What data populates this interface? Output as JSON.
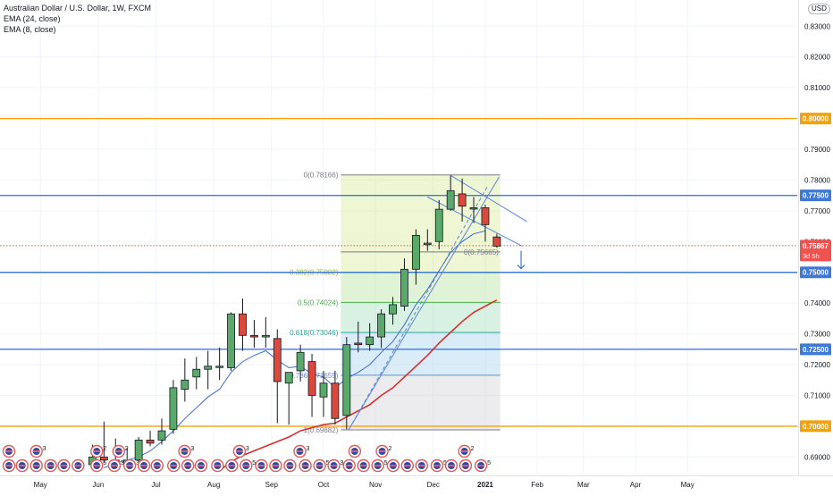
{
  "header": {
    "title": "Australian Dollar / U.S. Dollar, 1W, FXCM",
    "indicators": [
      "EMA (24, close)",
      "EMA (8, close)"
    ],
    "currency": "USD"
  },
  "colors": {
    "up": "#5aa86a",
    "down": "#d94a3c",
    "ema24": "#d32f2f",
    "ema8": "#3f6bd1",
    "orange_level": "#f2a20f",
    "blue_level": "#3f79d6",
    "current_price": "#ef5350"
  },
  "chart_data": {
    "type": "candlestick",
    "title": "Australian Dollar / U.S. Dollar, 1W, FXCM",
    "y_range": [
      0.684,
      0.8385
    ],
    "x_domain": [
      0,
      69
    ],
    "y_ticks": [
      "0.83000",
      "0.82000",
      "0.81000",
      "0.80000",
      "0.79000",
      "0.78000",
      "0.77000",
      "0.76000",
      "0.75000",
      "0.74000",
      "0.73000",
      "0.72000",
      "0.71000",
      "0.70000",
      "0.69000"
    ],
    "y_tick_values": [
      0.83,
      0.82,
      0.81,
      0.8,
      0.79,
      0.78,
      0.77,
      0.76,
      0.75,
      0.74,
      0.73,
      0.72,
      0.71,
      0.7,
      0.69
    ],
    "x_ticks": [
      {
        "label": "May",
        "x": 3.5
      },
      {
        "label": "Jun",
        "x": 8.5
      },
      {
        "label": "Jul",
        "x": 13.5
      },
      {
        "label": "Aug",
        "x": 18.5
      },
      {
        "label": "Sep",
        "x": 23.5
      },
      {
        "label": "Oct",
        "x": 28.0
      },
      {
        "label": "Nov",
        "x": 32.5
      },
      {
        "label": "Dec",
        "x": 37.5
      },
      {
        "label": "2021",
        "x": 42.0
      },
      {
        "label": "Feb",
        "x": 46.5
      },
      {
        "label": "Mar",
        "x": 50.5
      },
      {
        "label": "Apr",
        "x": 55.0
      },
      {
        "label": "May",
        "x": 59.5
      }
    ],
    "candles": [
      {
        "x": 8,
        "o": 0.6875,
        "h": 0.694,
        "l": 0.686,
        "c": 0.69
      },
      {
        "x": 9,
        "o": 0.69,
        "h": 0.7015,
        "l": 0.688,
        "c": 0.689
      },
      {
        "x": 10,
        "o": 0.689,
        "h": 0.696,
        "l": 0.687,
        "c": 0.688
      },
      {
        "x": 11,
        "o": 0.688,
        "h": 0.693,
        "l": 0.686,
        "c": 0.689
      },
      {
        "x": 12,
        "o": 0.689,
        "h": 0.6965,
        "l": 0.687,
        "c": 0.6955
      },
      {
        "x": 13,
        "o": 0.6955,
        "h": 0.6985,
        "l": 0.6935,
        "c": 0.6945
      },
      {
        "x": 14,
        "o": 0.6955,
        "h": 0.7025,
        "l": 0.694,
        "c": 0.6985
      },
      {
        "x": 15,
        "o": 0.699,
        "h": 0.715,
        "l": 0.6975,
        "c": 0.7125
      },
      {
        "x": 16,
        "o": 0.712,
        "h": 0.722,
        "l": 0.708,
        "c": 0.715
      },
      {
        "x": 17,
        "o": 0.716,
        "h": 0.7225,
        "l": 0.712,
        "c": 0.7185
      },
      {
        "x": 18,
        "o": 0.7185,
        "h": 0.7245,
        "l": 0.712,
        "c": 0.7195
      },
      {
        "x": 19,
        "o": 0.7195,
        "h": 0.7255,
        "l": 0.715,
        "c": 0.7195
      },
      {
        "x": 20,
        "o": 0.719,
        "h": 0.737,
        "l": 0.718,
        "c": 0.7365
      },
      {
        "x": 21,
        "o": 0.7365,
        "h": 0.7415,
        "l": 0.7245,
        "c": 0.7295
      },
      {
        "x": 22,
        "o": 0.7295,
        "h": 0.7345,
        "l": 0.7255,
        "c": 0.729
      },
      {
        "x": 23,
        "o": 0.729,
        "h": 0.7355,
        "l": 0.7255,
        "c": 0.7295
      },
      {
        "x": 24,
        "o": 0.7285,
        "h": 0.7315,
        "l": 0.701,
        "c": 0.7145
      },
      {
        "x": 25,
        "o": 0.714,
        "h": 0.717,
        "l": 0.7005,
        "c": 0.7175
      },
      {
        "x": 26,
        "o": 0.718,
        "h": 0.7265,
        "l": 0.7145,
        "c": 0.724
      },
      {
        "x": 27,
        "o": 0.721,
        "h": 0.7235,
        "l": 0.703,
        "c": 0.71
      },
      {
        "x": 28,
        "o": 0.7095,
        "h": 0.718,
        "l": 0.703,
        "c": 0.714
      },
      {
        "x": 29,
        "o": 0.714,
        "h": 0.718,
        "l": 0.7005,
        "c": 0.7025
      },
      {
        "x": 30,
        "o": 0.7035,
        "h": 0.729,
        "l": 0.699,
        "c": 0.7265
      },
      {
        "x": 31,
        "o": 0.727,
        "h": 0.734,
        "l": 0.724,
        "c": 0.7265
      },
      {
        "x": 32,
        "o": 0.7265,
        "h": 0.7335,
        "l": 0.7245,
        "c": 0.729
      },
      {
        "x": 33,
        "o": 0.729,
        "h": 0.738,
        "l": 0.7255,
        "c": 0.7365
      },
      {
        "x": 34,
        "o": 0.7365,
        "h": 0.742,
        "l": 0.733,
        "c": 0.7395
      },
      {
        "x": 35,
        "o": 0.739,
        "h": 0.7545,
        "l": 0.7375,
        "c": 0.751
      },
      {
        "x": 36,
        "o": 0.751,
        "h": 0.764,
        "l": 0.746,
        "c": 0.762
      },
      {
        "x": 37,
        "o": 0.759,
        "h": 0.764,
        "l": 0.757,
        "c": 0.7595
      },
      {
        "x": 38,
        "o": 0.76,
        "h": 0.7735,
        "l": 0.7575,
        "c": 0.7705
      },
      {
        "x": 39,
        "o": 0.7705,
        "h": 0.7815,
        "l": 0.77,
        "c": 0.7765
      },
      {
        "x": 40,
        "o": 0.7755,
        "h": 0.7805,
        "l": 0.7665,
        "c": 0.7715
      },
      {
        "x": 41,
        "o": 0.771,
        "h": 0.7745,
        "l": 0.766,
        "c": 0.771
      },
      {
        "x": 42,
        "o": 0.771,
        "h": 0.772,
        "l": 0.76,
        "c": 0.7655
      },
      {
        "x": 43,
        "o": 0.7615,
        "h": 0.7625,
        "l": 0.758,
        "c": 0.7585
      }
    ],
    "ema8": [
      [
        9,
        0.6865
      ],
      [
        10,
        0.688
      ],
      [
        11,
        0.689
      ],
      [
        12,
        0.69
      ],
      [
        13,
        0.692
      ],
      [
        14,
        0.695
      ],
      [
        15,
        0.6985
      ],
      [
        16,
        0.7025
      ],
      [
        17,
        0.706
      ],
      [
        18,
        0.7095
      ],
      [
        19,
        0.712
      ],
      [
        20,
        0.7175
      ],
      [
        21,
        0.721
      ],
      [
        22,
        0.723
      ],
      [
        23,
        0.7245
      ],
      [
        24,
        0.7215
      ],
      [
        25,
        0.719
      ],
      [
        26,
        0.7195
      ],
      [
        27,
        0.717
      ],
      [
        28,
        0.716
      ],
      [
        29,
        0.7125
      ],
      [
        30,
        0.7155
      ],
      [
        31,
        0.7175
      ],
      [
        32,
        0.72
      ],
      [
        33,
        0.724
      ],
      [
        34,
        0.7275
      ],
      [
        35,
        0.733
      ],
      [
        36,
        0.7395
      ],
      [
        37,
        0.7445
      ],
      [
        38,
        0.7505
      ],
      [
        39,
        0.7565
      ],
      [
        40,
        0.76
      ],
      [
        41,
        0.7625
      ],
      [
        42,
        0.7635
      ]
    ],
    "ema24": [
      [
        19,
        0.6855
      ],
      [
        20,
        0.6885
      ],
      [
        21,
        0.6905
      ],
      [
        22,
        0.692
      ],
      [
        23,
        0.6935
      ],
      [
        24,
        0.695
      ],
      [
        25,
        0.6965
      ],
      [
        26,
        0.6985
      ],
      [
        27,
        0.6995
      ],
      [
        28,
        0.7005
      ],
      [
        29,
        0.701
      ],
      [
        30,
        0.703
      ],
      [
        31,
        0.705
      ],
      [
        32,
        0.707
      ],
      [
        33,
        0.71
      ],
      [
        34,
        0.7125
      ],
      [
        35,
        0.716
      ],
      [
        36,
        0.7195
      ],
      [
        37,
        0.723
      ],
      [
        38,
        0.727
      ],
      [
        39,
        0.7305
      ],
      [
        40,
        0.734
      ],
      [
        41,
        0.737
      ],
      [
        42,
        0.739
      ],
      [
        43,
        0.741
      ]
    ],
    "horizontal_levels": [
      {
        "value": 0.8,
        "color": "orange",
        "label": "0.80000"
      },
      {
        "value": 0.775,
        "color": "blue",
        "label": "0.77500"
      },
      {
        "value": 0.75,
        "color": "blue",
        "label": "0.75000"
      },
      {
        "value": 0.725,
        "color": "blue",
        "label": "0.72500"
      },
      {
        "value": 0.7,
        "color": "orange",
        "label": "0.70000"
      }
    ],
    "current_price": {
      "value": 0.75867,
      "label": "0.75867",
      "countdown": "3d 5h"
    },
    "fibonacci": {
      "x_start": 29.5,
      "x_end": 43.3,
      "levels": [
        {
          "value": 0.78166,
          "label": "0(0.78166)",
          "color": "#787b86"
        },
        {
          "value": 0.75665,
          "label": "0(0.75665)",
          "color": "#787b86"
        },
        {
          "value": 0.75002,
          "label": "0.382(0.75002)",
          "color": "#8cbf3a"
        },
        {
          "value": 0.74024,
          "label": "0.5(0.74024)",
          "color": "#4caf50"
        },
        {
          "value": 0.73046,
          "label": "0.618(0.73046)",
          "color": "#26a69a"
        },
        {
          "value": 0.71655,
          "label": "0.786(0.71655)",
          "color": "#5b8fd8"
        },
        {
          "value": 0.69882,
          "label": "1(0.69882)",
          "color": "#787b86"
        }
      ]
    },
    "trendlines": [
      {
        "x1": 30.2,
        "y1": 0.699,
        "x2": 43.2,
        "y2": 0.781,
        "style": "solid"
      },
      {
        "x1": 30.2,
        "y1": 0.699,
        "x2": 42.2,
        "y2": 0.778,
        "style": "dashed"
      },
      {
        "x1": 39.0,
        "y1": 0.7815,
        "x2": 45.6,
        "y2": 0.7665,
        "style": "solid"
      },
      {
        "x1": 37.0,
        "y1": 0.7745,
        "x2": 45.2,
        "y2": 0.7585,
        "style": "solid"
      }
    ],
    "events_row_top": [
      {
        "x": 0.0,
        "count": ""
      },
      {
        "x": 2.5,
        "count": "3"
      },
      {
        "x": 8.0,
        "count": "2"
      },
      {
        "x": 10.0,
        "count": "2"
      },
      {
        "x": 16.0,
        "count": "3"
      },
      {
        "x": 21.0,
        "count": "3"
      },
      {
        "x": 26.5,
        "count": "3"
      },
      {
        "x": 31.5,
        "count": ""
      },
      {
        "x": 34.0,
        "count": "2"
      },
      {
        "x": 41.5,
        "count": "2"
      }
    ],
    "events_row_bottom": [
      {
        "x": 0.0,
        "count": ""
      },
      {
        "x": 1.2,
        "count": ""
      },
      {
        "x": 2.5,
        "count": ""
      },
      {
        "x": 3.8,
        "count": ""
      },
      {
        "x": 5.0,
        "count": ""
      },
      {
        "x": 6.3,
        "count": ""
      },
      {
        "x": 8.0,
        "count": "5"
      },
      {
        "x": 9.6,
        "count": "3"
      },
      {
        "x": 11.0,
        "count": "3"
      },
      {
        "x": 12.3,
        "count": ""
      },
      {
        "x": 13.5,
        "count": ""
      },
      {
        "x": 15.0,
        "count": ""
      },
      {
        "x": 16.3,
        "count": ""
      },
      {
        "x": 17.5,
        "count": ""
      },
      {
        "x": 19.0,
        "count": ""
      },
      {
        "x": 20.3,
        "count": ""
      },
      {
        "x": 21.6,
        "count": "5"
      },
      {
        "x": 23.0,
        "count": ""
      },
      {
        "x": 24.3,
        "count": ""
      },
      {
        "x": 25.6,
        "count": ""
      },
      {
        "x": 27.0,
        "count": ""
      },
      {
        "x": 28.3,
        "count": "5"
      },
      {
        "x": 29.6,
        "count": "3"
      },
      {
        "x": 31.0,
        "count": ""
      },
      {
        "x": 32.3,
        "count": ""
      },
      {
        "x": 33.6,
        "count": "5"
      },
      {
        "x": 35.0,
        "count": ""
      },
      {
        "x": 36.3,
        "count": ""
      },
      {
        "x": 37.6,
        "count": ""
      },
      {
        "x": 39.0,
        "count": "5"
      },
      {
        "x": 40.3,
        "count": ""
      },
      {
        "x": 41.6,
        "count": ""
      },
      {
        "x": 43.0,
        "count": "5"
      }
    ]
  }
}
